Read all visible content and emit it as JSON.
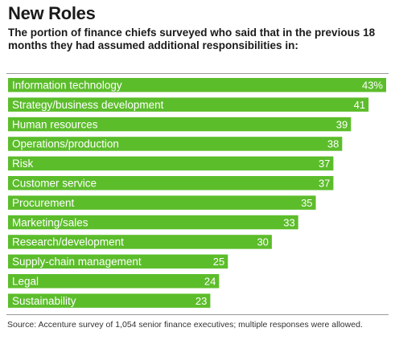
{
  "chart_data": {
    "type": "bar",
    "orientation": "horizontal",
    "title": "New Roles",
    "subtitle": "The portion of finance chiefs surveyed who said that in the previous 18 months they had assumed additional responsibilities in:",
    "categories": [
      "Information technology",
      "Strategy/business development",
      "Human resources",
      "Operations/production",
      "Risk",
      "Customer service",
      "Procurement",
      "Marketing/sales",
      "Research/development",
      "Supply-chain management",
      "Legal",
      "Sustainability"
    ],
    "values": [
      43,
      41,
      39,
      38,
      37,
      37,
      35,
      33,
      30,
      25,
      24,
      23
    ],
    "value_labels": [
      "43%",
      "41",
      "39",
      "38",
      "37",
      "37",
      "35",
      "33",
      "30",
      "25",
      "24",
      "23"
    ],
    "unit": "%",
    "xlim": [
      0,
      43
    ],
    "grid": false,
    "legend": "none",
    "bar_color": "#5cbd2b",
    "source": "Source: Accenture survey of 1,054 senior finance executives; multiple responses were allowed."
  }
}
